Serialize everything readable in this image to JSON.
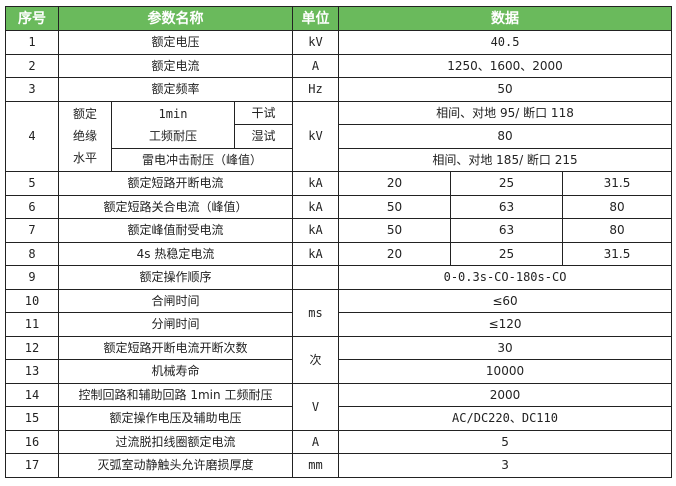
{
  "header": {
    "no": "序号",
    "name": "参数名称",
    "unit": "单位",
    "data": "数据"
  },
  "header_color": "#6aba5c",
  "rows": [
    {
      "no": "1",
      "name": "额定电压",
      "unit": "kV",
      "data": "40.5"
    },
    {
      "no": "2",
      "name": "额定电流",
      "unit": "A",
      "data": "1250、1600、2000"
    },
    {
      "no": "3",
      "name": "额定频率",
      "unit": "Hz",
      "data": "50"
    },
    {
      "no": "4",
      "group": "额定绝缘水平",
      "group_lines": [
        "额定",
        "绝缘",
        "水平"
      ],
      "sub1": "1min",
      "sub2": "工频耐压",
      "dry": "干试",
      "wet": "湿试",
      "lightning": "雷电冲击耐压（峰值）",
      "unit": "kV",
      "data_dry": "相间、对地 95/ 断口 118",
      "data_wet": "80",
      "data_lightning": "相间、对地 185/ 断口 215"
    },
    {
      "no": "5",
      "name": "额定短路开断电流",
      "unit": "kA",
      "values": [
        "20",
        "25",
        "31.5"
      ]
    },
    {
      "no": "6",
      "name": "额定短路关合电流（峰值）",
      "unit": "kA",
      "values": [
        "50",
        "63",
        "80"
      ]
    },
    {
      "no": "7",
      "name": "额定峰值耐受电流",
      "unit": "kA",
      "values": [
        "50",
        "63",
        "80"
      ]
    },
    {
      "no": "8",
      "name": "4s 热稳定电流",
      "unit": "kA",
      "values": [
        "20",
        "25",
        "31.5"
      ]
    },
    {
      "no": "9",
      "name": "额定操作顺序",
      "unit": "",
      "data": "0-0.3s-CO-180s-CO"
    },
    {
      "no": "10",
      "name": "合闸时间",
      "unit": "ms",
      "data": "≤60"
    },
    {
      "no": "11",
      "name": "分闸时间",
      "data": "≤120"
    },
    {
      "no": "12",
      "name": "额定短路开断电流开断次数",
      "unit": "次",
      "data": "30"
    },
    {
      "no": "13",
      "name": "机械寿命",
      "data": "10000"
    },
    {
      "no": "14",
      "name": "控制回路和辅助回路 1min 工频耐压",
      "unit": "V",
      "data": "2000"
    },
    {
      "no": "15",
      "name": "额定操作电压及辅助电压",
      "data": "AC/DC220、DC110"
    },
    {
      "no": "16",
      "name": "过流脱扣线圈额定电流",
      "unit": "A",
      "data": "5"
    },
    {
      "no": "17",
      "name": "灭弧室动静触头允许磨损厚度",
      "unit": "mm",
      "data": "3"
    }
  ]
}
